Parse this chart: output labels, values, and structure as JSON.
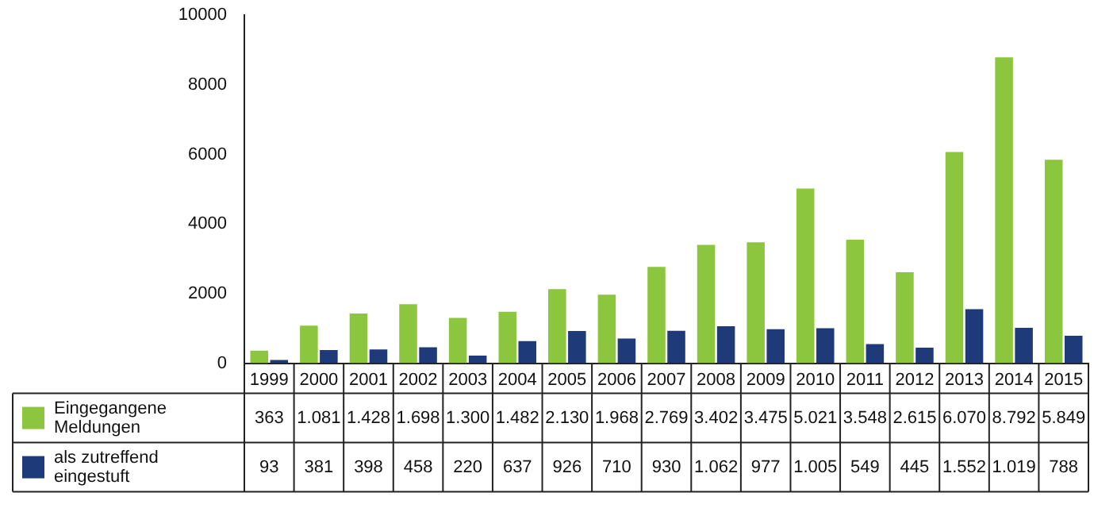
{
  "chart_data": {
    "type": "bar",
    "categories": [
      "1999",
      "2000",
      "2001",
      "2002",
      "2003",
      "2004",
      "2005",
      "2006",
      "2007",
      "2008",
      "2009",
      "2010",
      "2011",
      "2012",
      "2013",
      "2014",
      "2015"
    ],
    "series": [
      {
        "name": "Eingegangene Meldungen",
        "color": "#8cc63e",
        "values": [
          363,
          1081,
          1428,
          1698,
          1300,
          1482,
          2130,
          1968,
          2769,
          3402,
          3475,
          5021,
          3548,
          2615,
          6070,
          8792,
          5849
        ],
        "value_labels": [
          "363",
          "1.081",
          "1.428",
          "1.698",
          "1.300",
          "1.482",
          "2.130",
          "1.968",
          "2.769",
          "3.402",
          "3.475",
          "5.021",
          "3.548",
          "2.615",
          "6.070",
          "8.792",
          "5.849"
        ]
      },
      {
        "name": "als zutreffend eingestuft",
        "color": "#1f3a78",
        "values": [
          93,
          381,
          398,
          458,
          220,
          637,
          926,
          710,
          930,
          1062,
          977,
          1005,
          549,
          445,
          1552,
          1019,
          788
        ],
        "value_labels": [
          "93",
          "381",
          "398",
          "458",
          "220",
          "637",
          "926",
          "710",
          "930",
          "1.062",
          "977",
          "1.005",
          "549",
          "445",
          "1.552",
          "1.019",
          "788"
        ]
      }
    ],
    "ylim": [
      0,
      10000
    ],
    "yticks": [
      0,
      2000,
      4000,
      6000,
      8000,
      10000
    ],
    "grid": false,
    "legend": "bottom left"
  }
}
